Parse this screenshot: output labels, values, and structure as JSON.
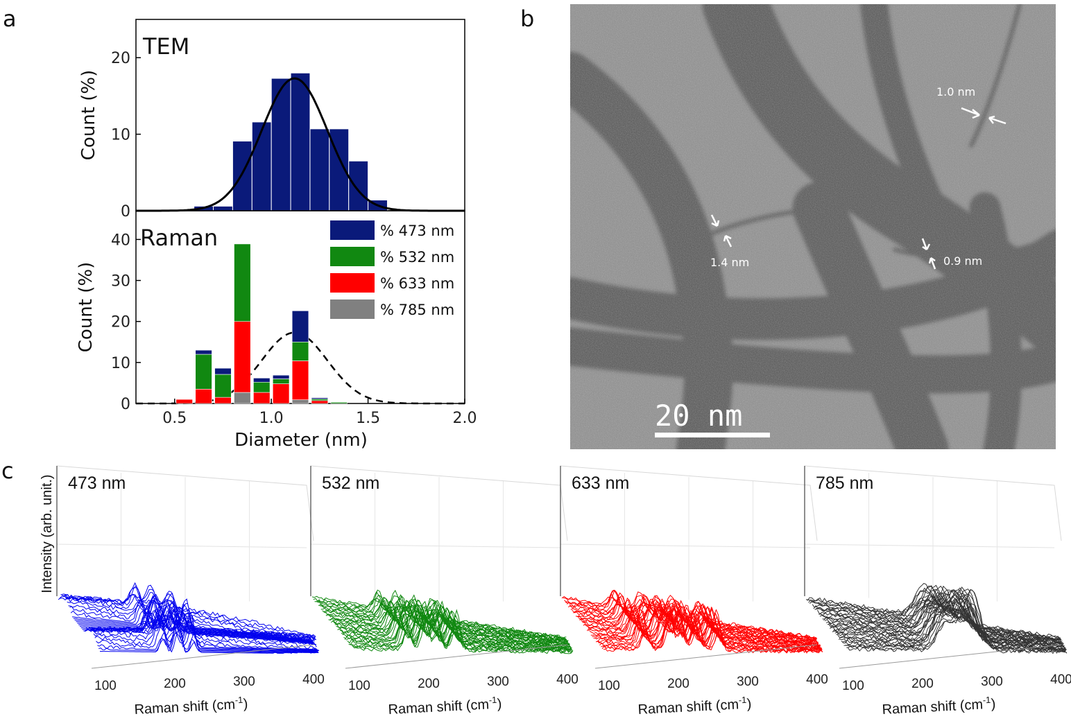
{
  "panel_labels": {
    "a": "a",
    "b": "b",
    "c": "c"
  },
  "chart_data": [
    {
      "type": "bar",
      "title": "TEM",
      "xlabel": "",
      "ylabel": "Count (%)",
      "xlim": [
        0.3,
        2.0
      ],
      "ylim": [
        0,
        25
      ],
      "yticks": [
        "0",
        "10",
        "20"
      ],
      "bar_color": "#0a1a7a",
      "x": [
        0.65,
        0.75,
        0.85,
        0.95,
        1.05,
        1.15,
        1.25,
        1.35,
        1.45,
        1.55
      ],
      "values": [
        0.6,
        0.6,
        9.1,
        11.6,
        17.3,
        18.0,
        10.7,
        10.7,
        6.5,
        1.4
      ],
      "fit": {
        "type": "gaussian",
        "amplitude": 17.3,
        "center": 1.12,
        "sigma": 0.17,
        "color": "#000000"
      }
    },
    {
      "type": "bar",
      "stacked": true,
      "title": "Raman",
      "xlabel": "Diameter (nm)",
      "ylabel": "Count (%)",
      "xlim": [
        0.3,
        2.0
      ],
      "ylim": [
        0,
        47
      ],
      "xticks": [
        "0.5",
        "1.0",
        "1.5",
        "2.0"
      ],
      "yticks": [
        "0",
        "10",
        "20",
        "30",
        "40"
      ],
      "x": [
        0.55,
        0.65,
        0.75,
        0.85,
        0.95,
        1.05,
        1.15,
        1.25,
        1.35
      ],
      "series": [
        {
          "name": "% 785 nm",
          "color": "#808080",
          "values": [
            0,
            0,
            0,
            2.7,
            0,
            0,
            0.9,
            0,
            0
          ]
        },
        {
          "name": "% 633 nm",
          "color": "#ff0000",
          "values": [
            1.0,
            3.5,
            1.5,
            17.3,
            2.7,
            4.8,
            9.5,
            0.7,
            0
          ]
        },
        {
          "name": "% 532 nm",
          "color": "#118811",
          "values": [
            0,
            8.5,
            5.6,
            18.9,
            2.5,
            1.2,
            4.6,
            0.4,
            0.3
          ]
        },
        {
          "name": "% 473 nm",
          "color": "#0a1a7a",
          "values": [
            0,
            1.0,
            1.5,
            0,
            1.0,
            0.9,
            7.6,
            0.3,
            0
          ]
        }
      ],
      "legend": [
        "% 473 nm",
        "% 532 nm",
        "% 633 nm",
        "% 785 nm"
      ],
      "reference_curve": {
        "type": "gaussian",
        "amplitude": 17.3,
        "center": 1.12,
        "sigma": 0.17,
        "style": "dashed"
      }
    },
    {
      "type": "line",
      "title": "473 nm",
      "xlabel": "Raman shift (cm",
      "ylabel": "Intensity (arb. unit.)",
      "xticks": [
        "100",
        "200",
        "300",
        "400"
      ],
      "color": "#0000ee",
      "peaks_cm-1": [
        165,
        190,
        215
      ]
    },
    {
      "type": "line",
      "title": "532 nm",
      "xlabel": "Raman shift (cm",
      "xticks": [
        "100",
        "200",
        "300",
        "400"
      ],
      "color": "#118811",
      "peaks_cm-1": [
        150,
        178,
        200,
        230
      ]
    },
    {
      "type": "line",
      "title": "633 nm",
      "xlabel": "Raman shift (cm",
      "xticks": [
        "100",
        "200",
        "300",
        "400"
      ],
      "color": "#ff0000",
      "peaks_cm-1": [
        130,
        170,
        190,
        215,
        250
      ]
    },
    {
      "type": "line",
      "title": "785 nm",
      "xlabel": "Raman shift (cm",
      "xticks": [
        "100",
        "200",
        "300",
        "400"
      ],
      "color": "#333333",
      "peaks_cm-1": [
        225,
        265
      ]
    }
  ],
  "raman_axis_superscript": "-1",
  "raman_axis_close": ")",
  "tem_image": {
    "annotations": [
      "1.0 nm",
      "1.4 nm",
      "0.9 nm"
    ],
    "scale_bar": "20 nm"
  }
}
